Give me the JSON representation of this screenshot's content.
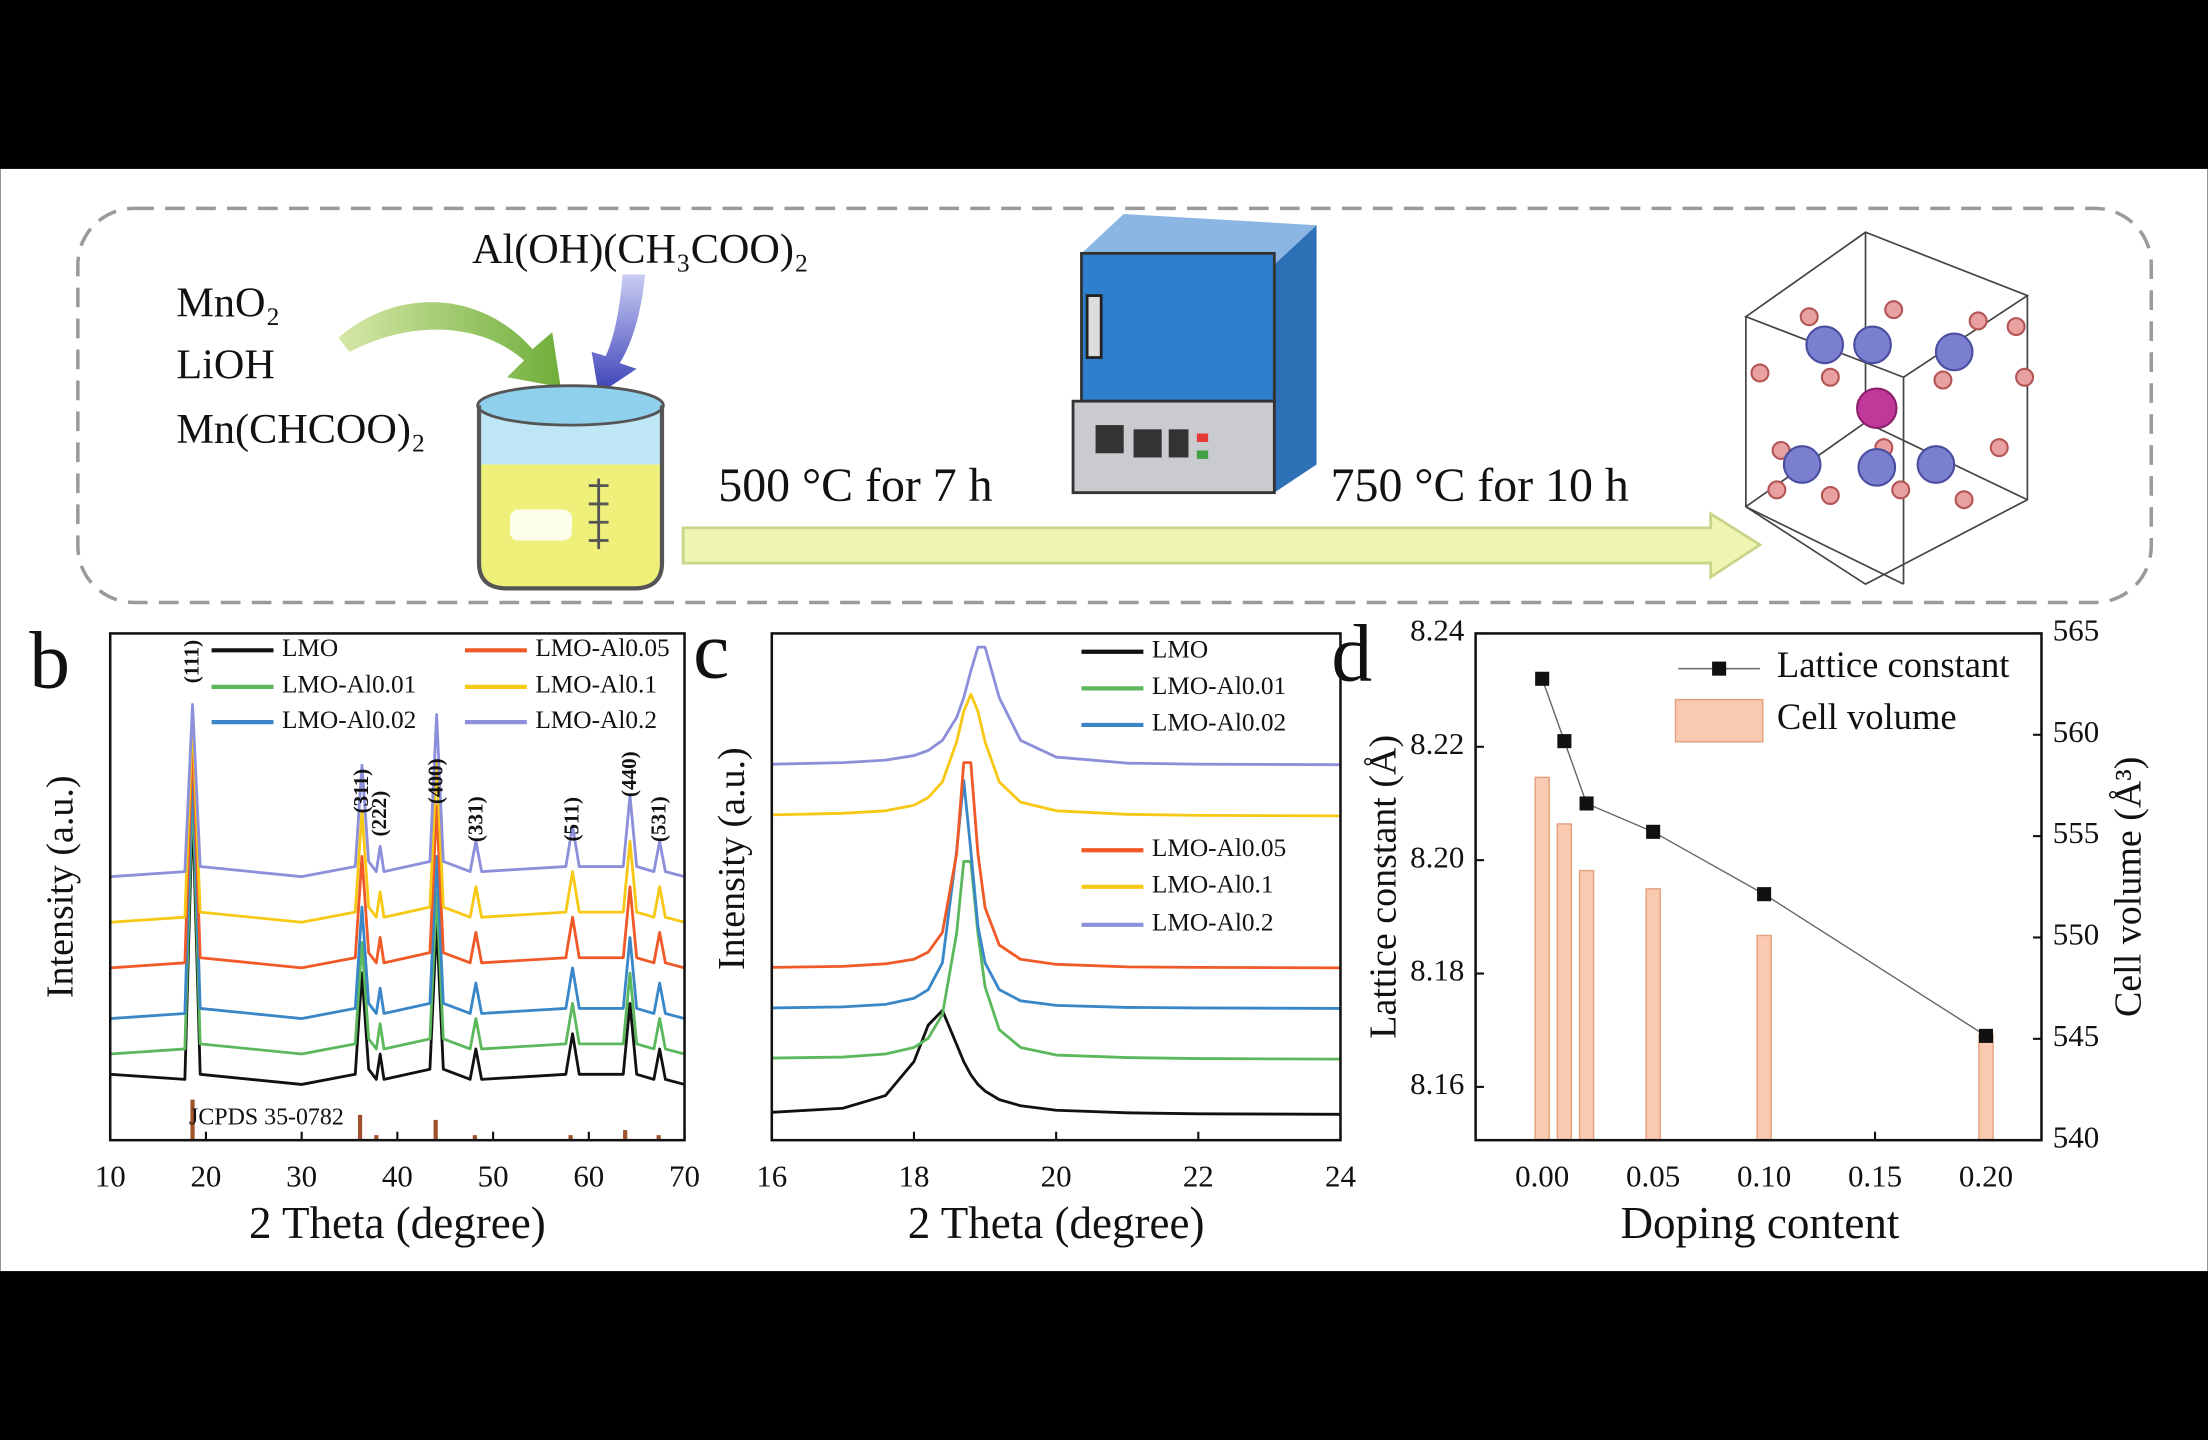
{
  "scheme": {
    "reagents": [
      "MnO₂",
      "LiOH",
      "Mn(CHCOO)₂"
    ],
    "additive": "Al(OH)(CH₃COO)₂",
    "step1": "500 °C for 7 h",
    "step2": "750 °C for 10 h"
  },
  "chart_data": [
    {
      "type": "line",
      "label": "b",
      "xlabel": "2 Theta (degree)",
      "ylabel": "Intensity (a.u.)",
      "xlim": [
        10,
        70
      ],
      "xticks": [
        10,
        20,
        30,
        40,
        50,
        60,
        70
      ],
      "ylim": [
        0,
        100
      ],
      "x": [
        10,
        17.8,
        18.6,
        19.4,
        30,
        35.6,
        36.3,
        37.0,
        37.8,
        38.2,
        38.6,
        43.4,
        44.1,
        44.8,
        47.6,
        48.2,
        48.8,
        57.6,
        58.3,
        59.0,
        63.6,
        64.3,
        65.0,
        66.8,
        67.4,
        68.0,
        70
      ],
      "series": [
        {
          "name": "LMO",
          "color": "#111111",
          "values": [
            13,
            12,
            66,
            13,
            11,
            13,
            33,
            14,
            12,
            17,
            12,
            14,
            43,
            14,
            12,
            18,
            12,
            13,
            21,
            13,
            13,
            27,
            13,
            12,
            18,
            12,
            11
          ]
        },
        {
          "name": "LMO-Al0.01",
          "color": "#5cb85c",
          "values": [
            17,
            18,
            70,
            19,
            17,
            19,
            39,
            20,
            18,
            23,
            18,
            20,
            49,
            20,
            18,
            24,
            18,
            19,
            27,
            19,
            19,
            33,
            19,
            18,
            24,
            18,
            17
          ]
        },
        {
          "name": "LMO-Al0.02",
          "color": "#3a87c8",
          "values": [
            24,
            25,
            74,
            26,
            24,
            26,
            46,
            27,
            25,
            30,
            25,
            27,
            56,
            27,
            25,
            31,
            25,
            26,
            34,
            26,
            26,
            40,
            26,
            25,
            31,
            25,
            24
          ]
        },
        {
          "name": "LMO-Al0.05",
          "color": "#f05a28",
          "values": [
            34,
            35,
            80,
            36,
            34,
            36,
            56,
            37,
            35,
            40,
            35,
            37,
            66,
            37,
            35,
            41,
            35,
            36,
            44,
            36,
            36,
            50,
            36,
            35,
            41,
            35,
            34
          ]
        },
        {
          "name": "LMO-Al0.1",
          "color": "#f7c815",
          "values": [
            43,
            44,
            84,
            45,
            43,
            45,
            65,
            46,
            44,
            49,
            44,
            46,
            75,
            46,
            44,
            50,
            44,
            45,
            53,
            45,
            45,
            59,
            45,
            44,
            50,
            44,
            43
          ]
        },
        {
          "name": "LMO-Al0.2",
          "color": "#8c8fd9",
          "values": [
            52,
            53,
            86,
            54,
            52,
            54,
            74,
            55,
            53,
            58,
            53,
            55,
            84,
            55,
            53,
            59,
            53,
            54,
            62,
            54,
            54,
            68,
            54,
            53,
            59,
            53,
            52
          ]
        }
      ],
      "peak_labels": [
        {
          "label": "(111)",
          "x": 18.7
        },
        {
          "label": "(311)",
          "x": 36.4
        },
        {
          "label": "(222)",
          "x": 38.3
        },
        {
          "label": "(400)",
          "x": 44.2
        },
        {
          "label": "(331)",
          "x": 48.4
        },
        {
          "label": "(511)",
          "x": 58.4
        },
        {
          "label": "(440)",
          "x": 64.4
        },
        {
          "label": "(531)",
          "x": 67.5
        }
      ],
      "reference": {
        "label": "JCPDS 35-0782",
        "color": "#a0522d",
        "x": [
          18.6,
          36.1,
          37.8,
          44.0,
          48.1,
          58.1,
          63.8,
          67.3
        ],
        "values": [
          8,
          5,
          1,
          4,
          1,
          1,
          2,
          1
        ]
      }
    },
    {
      "type": "line",
      "label": "c",
      "xlabel": "2 Theta (degree)",
      "ylabel": "Intensity (a.u.)",
      "xlim": [
        16,
        24
      ],
      "xticks": [
        16,
        18,
        20,
        22,
        24
      ],
      "ylim": [
        0,
        100
      ],
      "x": [
        16,
        17,
        17.6,
        18.0,
        18.2,
        18.4,
        18.6,
        18.7,
        18.8,
        18.9,
        19.0,
        19.2,
        19.5,
        20,
        21,
        22,
        24
      ],
      "series": [
        {
          "name": "LMO",
          "color": "#111111",
          "values": [
            5.5,
            6.3,
            8.8,
            15.5,
            22.7,
            25.6,
            18.9,
            15.5,
            12.9,
            11.0,
            9.7,
            8.0,
            6.8,
            5.9,
            5.4,
            5.2,
            5.1
          ]
        },
        {
          "name": "LMO-Al0.01",
          "color": "#5cb85c",
          "values": [
            16.2,
            16.4,
            17.0,
            18.3,
            20.1,
            24.8,
            40.8,
            55.0,
            55.0,
            40.8,
            30.3,
            21.8,
            18.3,
            16.8,
            16.3,
            16.1,
            16.0
          ]
        },
        {
          "name": "LMO-Al0.02",
          "color": "#3a87c8",
          "values": [
            26.1,
            26.3,
            26.8,
            28.0,
            29.7,
            35.0,
            57.1,
            71.0,
            57.1,
            42.2,
            35.0,
            29.7,
            27.5,
            26.6,
            26.2,
            26.1,
            26.0
          ]
        },
        {
          "name": "LMO-Al0.05",
          "color": "#f05a28",
          "values": [
            34.1,
            34.3,
            34.8,
            35.7,
            37.1,
            41.0,
            56.5,
            74.5,
            74.5,
            56.5,
            45.9,
            38.5,
            35.7,
            34.7,
            34.2,
            34.1,
            34.0
          ]
        },
        {
          "name": "LMO-Al0.1",
          "color": "#f7c815",
          "values": [
            64.2,
            64.5,
            65.0,
            66.1,
            67.6,
            70.7,
            78.6,
            84.6,
            88.0,
            84.6,
            78.6,
            70.7,
            66.7,
            65.0,
            64.3,
            64.1,
            64.0
          ]
        },
        {
          "name": "LMO-Al0.2",
          "color": "#8c8fd9",
          "values": [
            74.2,
            74.5,
            75.0,
            75.9,
            76.9,
            78.9,
            83.4,
            87.3,
            92.6,
            97.3,
            97.3,
            87.3,
            78.9,
            75.6,
            74.4,
            74.2,
            74.1
          ]
        }
      ]
    },
    {
      "type": "combo",
      "label": "d",
      "xlabel": "Doping content",
      "ylabel": "Lattice constant (Å)",
      "y2label": "Cell volume (Å³)",
      "xlim": [
        -0.03,
        0.225
      ],
      "xticks": [
        {
          "value": 0,
          "label": "0.00"
        },
        0.05,
        {
          "value": 0.1,
          "label": "0.10"
        },
        0.15,
        {
          "value": 0.2,
          "label": "0.20"
        }
      ],
      "ylim": [
        8.1506,
        8.24
      ],
      "yticks": [
        8.16,
        8.18,
        {
          "value": 8.2,
          "label": "8.20"
        },
        8.22,
        8.24
      ],
      "y2lim": [
        540,
        565
      ],
      "y2ticks": [
        540,
        545,
        550,
        555,
        560,
        565
      ],
      "x": [
        0,
        0.01,
        0.02,
        0.05,
        0.1,
        0.2
      ],
      "series": [
        {
          "name": "Lattice constant",
          "color": "#111111",
          "type": "line",
          "values": [
            8.232,
            8.221,
            8.21,
            8.205,
            8.194,
            8.169
          ]
        },
        {
          "name": "Cell volume",
          "color": "#f9c9b0",
          "type": "bar",
          "axis": "y2",
          "values": [
            557.9,
            555.6,
            553.3,
            552.4,
            550.1,
            545.2
          ]
        }
      ]
    }
  ]
}
